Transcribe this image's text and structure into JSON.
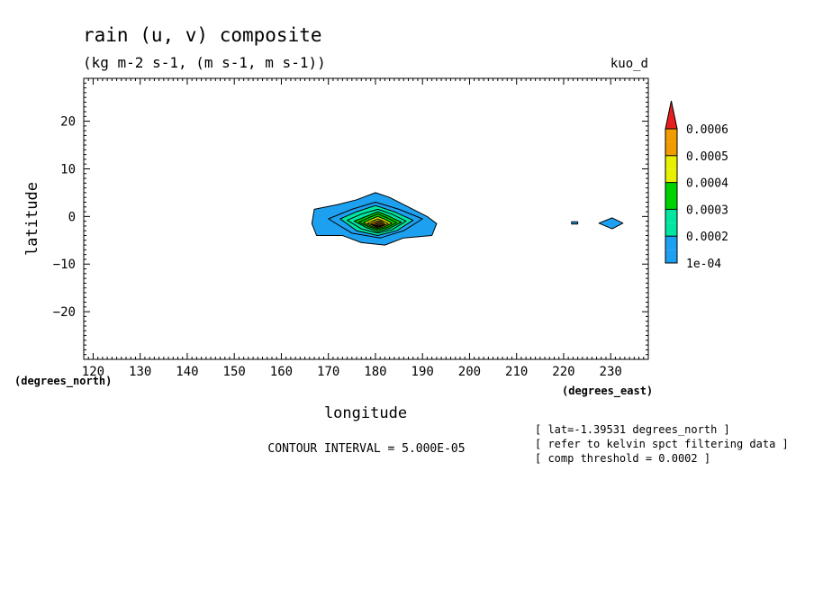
{
  "chart_data": {
    "type": "contour",
    "title": "rain (u, v) composite",
    "subtitle": "(kg m-2 s-1, (m s-1, m s-1))",
    "dataset_label": "kuo_d",
    "xlabel": "longitude",
    "ylabel": "latitude",
    "x_units": "(degrees_east)",
    "y_units": "(degrees_north)",
    "xlim": [
      118,
      238
    ],
    "ylim": [
      -30,
      29
    ],
    "x_ticks": [
      120,
      130,
      140,
      150,
      160,
      170,
      180,
      190,
      200,
      210,
      220,
      230
    ],
    "x_tick_labels": [
      "120",
      "130",
      "140",
      "150",
      "160",
      "170",
      "180",
      "190",
      "200",
      "210",
      "220",
      "230"
    ],
    "y_ticks": [
      20,
      10,
      0,
      -10,
      -20
    ],
    "y_tick_labels": [
      "20",
      "10",
      "0",
      "−10",
      "−20"
    ],
    "contour_interval_text": "CONTOUR INTERVAL = 5.000E-05",
    "notes": [
      "[ lat=-1.39531 degrees_north ]",
      "[ refer to kelvin spct filtering data ]",
      "[ comp threshold = 0.0002 ]"
    ],
    "colorbar": {
      "labels": [
        "0.0006",
        "0.0005",
        "0.0004",
        "0.0003",
        "0.0002",
        "1e-04"
      ],
      "levels": [
        0.0001,
        0.00015,
        0.0002,
        0.00025,
        0.0003,
        0.00035,
        0.0004,
        0.00045,
        0.0005,
        0.00055,
        0.0006,
        0.00065
      ],
      "colors": [
        "#1ea0f0",
        "#1ea0f0",
        "#00e6a0",
        "#00e6a0",
        "#00d200",
        "#00d200",
        "#e6f000",
        "#e6f000",
        "#f09b00",
        "#f09b00",
        "#e61e1e"
      ]
    },
    "features": [
      {
        "name": "main-rain-blob",
        "level": 0.0001,
        "color": "#1ea0f0",
        "polygon": [
          [
            167,
            1.5
          ],
          [
            172,
            2.5
          ],
          [
            176,
            3.5
          ],
          [
            180,
            5
          ],
          [
            183,
            4
          ],
          [
            187,
            2
          ],
          [
            191,
            0
          ],
          [
            193,
            -1.5
          ],
          [
            192,
            -4
          ],
          [
            186,
            -4.5
          ],
          [
            182,
            -6
          ],
          [
            177,
            -5.5
          ],
          [
            173,
            -4
          ],
          [
            167.5,
            -4
          ],
          [
            166.5,
            -1.5
          ]
        ]
      },
      {
        "name": "contour-0.00015",
        "level": 0.00015,
        "color": "#1ea0f0",
        "polygon": [
          [
            170,
            -0.5
          ],
          [
            175,
            1.5
          ],
          [
            180,
            3
          ],
          [
            185,
            1.5
          ],
          [
            190,
            -0.5
          ],
          [
            186,
            -3
          ],
          [
            181,
            -4.5
          ],
          [
            175,
            -3.5
          ]
        ]
      },
      {
        "name": "contour-0.0002",
        "level": 0.0002,
        "color": "#00e6a0",
        "polygon": [
          [
            172.5,
            -0.5
          ],
          [
            176,
            1
          ],
          [
            180,
            2.3
          ],
          [
            184,
            1
          ],
          [
            188,
            -0.8
          ],
          [
            184.5,
            -3
          ],
          [
            180.5,
            -4
          ],
          [
            176,
            -3
          ]
        ]
      },
      {
        "name": "contour-0.00025",
        "level": 0.00025,
        "color": "#00e6a0",
        "polygon": [
          [
            174,
            -0.8
          ],
          [
            177,
            0.5
          ],
          [
            180.5,
            1.5
          ],
          [
            183.5,
            0.5
          ],
          [
            186.5,
            -1
          ],
          [
            183.5,
            -2.8
          ],
          [
            180.5,
            -3.5
          ],
          [
            177,
            -2.6
          ]
        ]
      },
      {
        "name": "contour-0.0003",
        "level": 0.0003,
        "color": "#00d200",
        "polygon": [
          [
            175.5,
            -1
          ],
          [
            178,
            0
          ],
          [
            180.5,
            1
          ],
          [
            183,
            0
          ],
          [
            185.5,
            -1.2
          ],
          [
            183,
            -2.5
          ],
          [
            180.5,
            -3.2
          ],
          [
            178,
            -2.3
          ]
        ]
      },
      {
        "name": "contour-0.00035",
        "level": 0.00035,
        "color": "#00d200",
        "polygon": [
          [
            176.5,
            -1.2
          ],
          [
            178.5,
            -0.3
          ],
          [
            180.5,
            0.5
          ],
          [
            182.5,
            -0.3
          ],
          [
            184.5,
            -1.3
          ],
          [
            182.5,
            -2.3
          ],
          [
            180.5,
            -2.8
          ],
          [
            178.5,
            -2.1
          ]
        ]
      },
      {
        "name": "contour-0.0004",
        "level": 0.0004,
        "color": "#e6f000",
        "polygon": [
          [
            177.5,
            -1.3
          ],
          [
            179,
            -0.6
          ],
          [
            180.5,
            0
          ],
          [
            182,
            -0.6
          ],
          [
            183.5,
            -1.4
          ],
          [
            182,
            -2.1
          ],
          [
            180.5,
            -2.5
          ],
          [
            179,
            -2
          ]
        ]
      },
      {
        "name": "contour-0.00045",
        "level": 0.00045,
        "color": "#e6f000",
        "polygon": [
          [
            178.3,
            -1.4
          ],
          [
            179.5,
            -0.9
          ],
          [
            180.5,
            -0.5
          ],
          [
            181.5,
            -0.9
          ],
          [
            182.7,
            -1.5
          ],
          [
            181.5,
            -2
          ],
          [
            180.5,
            -2.3
          ],
          [
            179.5,
            -1.9
          ]
        ]
      },
      {
        "name": "contour-0.0005",
        "level": 0.0005,
        "color": "#f09b00",
        "polygon": [
          [
            179,
            -1.5
          ],
          [
            179.8,
            -1.1
          ],
          [
            180.6,
            -0.9
          ],
          [
            181.4,
            -1.1
          ],
          [
            182,
            -1.6
          ],
          [
            181.4,
            -2
          ],
          [
            180.6,
            -2.2
          ],
          [
            179.8,
            -1.9
          ]
        ]
      },
      {
        "name": "contour-0.00055",
        "level": 0.00055,
        "color": "#f09b00",
        "polygon": [
          [
            179.6,
            -1.6
          ],
          [
            180.2,
            -1.3
          ],
          [
            180.7,
            -1.2
          ],
          [
            181.2,
            -1.3
          ],
          [
            181.6,
            -1.6
          ],
          [
            181.2,
            -1.9
          ],
          [
            180.7,
            -2
          ],
          [
            180.2,
            -1.9
          ]
        ]
      },
      {
        "name": "contour-0.0006",
        "level": 0.0006,
        "color": "#f5b4b4",
        "polygon": [
          [
            180.1,
            -1.6
          ],
          [
            180.7,
            -1.45
          ],
          [
            181.2,
            -1.6
          ],
          [
            180.7,
            -1.8
          ]
        ]
      },
      {
        "name": "east-blob",
        "level": 0.0001,
        "color": "#1ea0f0",
        "polygon": [
          [
            227.5,
            -1.4
          ],
          [
            230.3,
            -0.3
          ],
          [
            232.6,
            -1.4
          ],
          [
            230.3,
            -2.6
          ]
        ]
      },
      {
        "name": "tiny-east-feature",
        "level": 0.0001,
        "color": "#1ea0f0",
        "polygon": [
          [
            221.7,
            -1.1
          ],
          [
            223,
            -1.1
          ],
          [
            223,
            -1.6
          ],
          [
            221.7,
            -1.6
          ]
        ]
      }
    ]
  }
}
